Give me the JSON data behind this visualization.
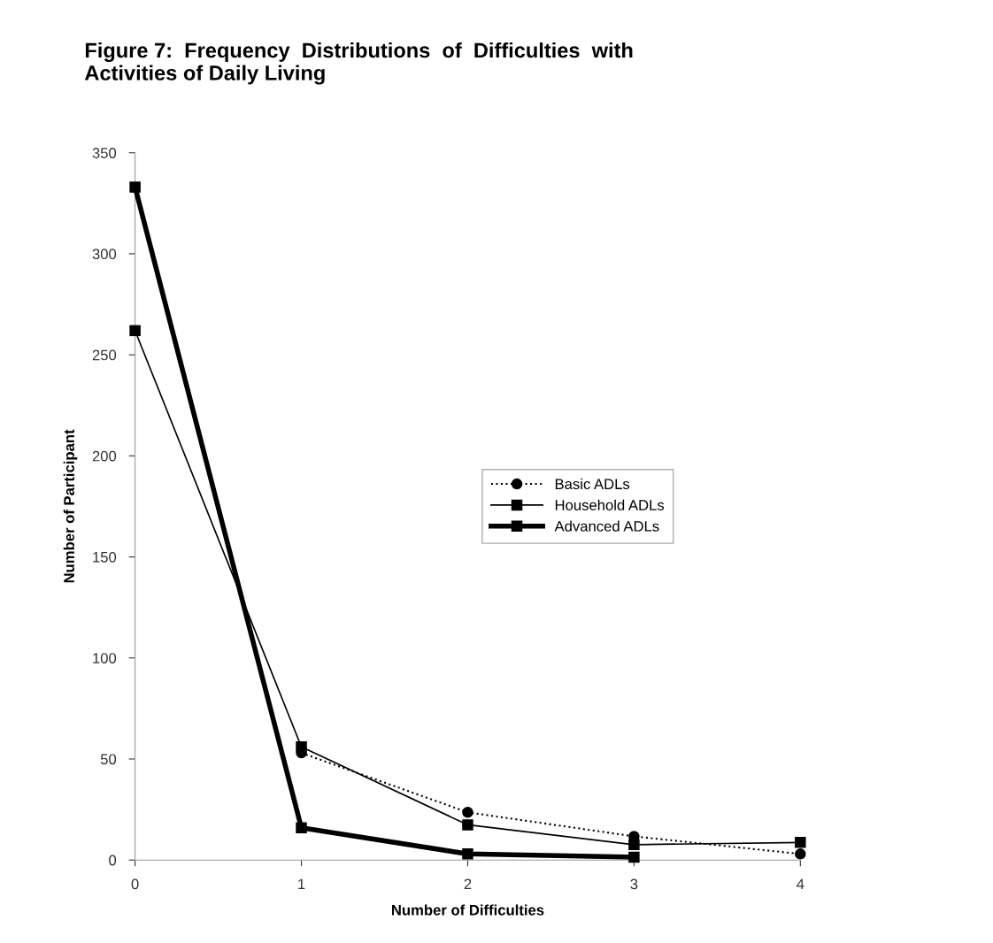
{
  "chart_data": {
    "type": "line",
    "title": "Figure 7:  Frequency  Distributions  of  Difficulties  with\nActivities of Daily Living",
    "xlabel": "Number of Difficulties",
    "ylabel": "Number of Participant",
    "x": [
      0,
      1,
      2,
      3,
      4
    ],
    "xlim": [
      0,
      4
    ],
    "xticks": [
      0,
      1,
      2,
      3,
      4
    ],
    "ylim": [
      0,
      350
    ],
    "yticks": [
      0,
      50,
      100,
      150,
      200,
      250,
      300,
      350
    ],
    "grid": false,
    "legend": "right",
    "series": [
      {
        "name": "Basic ADLs",
        "color": "#000000",
        "marker": "circle",
        "line_style": "dotted",
        "values": [
          null,
          53,
          23.6,
          11.7,
          3
        ]
      },
      {
        "name": "Household ADLs",
        "color": "#000000",
        "marker": "square",
        "line_style": "solid",
        "values": [
          262,
          56,
          17.4,
          7.6,
          8.7
        ]
      },
      {
        "name": "Advanced ADLs",
        "color": "#000000",
        "marker": "square",
        "line_style": "solid",
        "values": [
          333,
          16,
          3,
          1.4,
          null
        ]
      }
    ]
  }
}
